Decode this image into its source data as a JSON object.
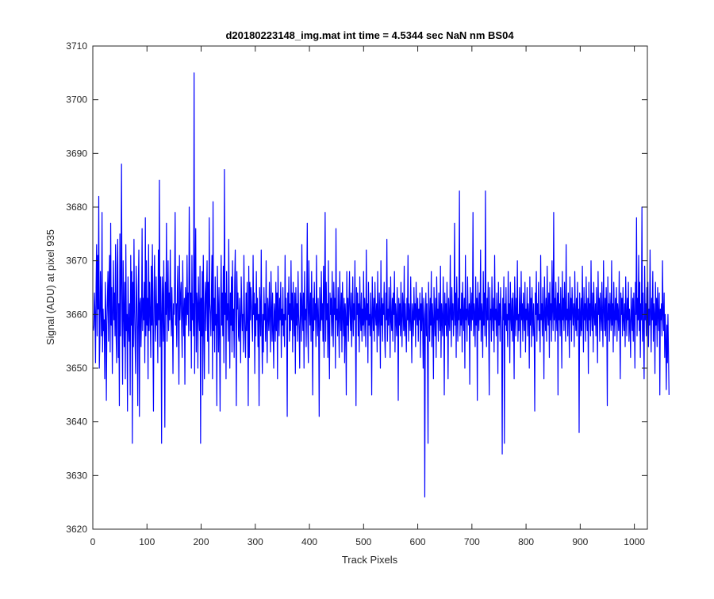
{
  "chart_data": {
    "type": "line",
    "title": "d20180223148_img.mat int time = 4.5344 sec  NaN nm BS04",
    "xlabel": "Track Pixels",
    "ylabel": "Signal (ADU) at pixel 935",
    "xlim": [
      0,
      1024
    ],
    "ylim": [
      3620,
      3710
    ],
    "xticks": [
      "0",
      "100",
      "200",
      "300",
      "400",
      "500",
      "600",
      "700",
      "800",
      "900",
      "1000"
    ],
    "yticks": [
      "3620",
      "3630",
      "3640",
      "3650",
      "3660",
      "3670",
      "3680",
      "3690",
      "3700",
      "3710"
    ],
    "grid": false,
    "series": [
      {
        "color": "#0000ff",
        "x_start": 1,
        "x_step": 1,
        "values": [
          3657,
          3658,
          3664,
          3660,
          3651,
          3665,
          3673,
          3656,
          3671,
          3661,
          3682,
          3650,
          3655,
          3668,
          3662,
          3656,
          3679,
          3653,
          3661,
          3657,
          3659,
          3648,
          3666,
          3661,
          3644,
          3658,
          3663,
          3668,
          3655,
          3666,
          3671,
          3653,
          3677,
          3658,
          3665,
          3649,
          3660,
          3670,
          3659,
          3664,
          3656,
          3673,
          3656,
          3651,
          3669,
          3674,
          3652,
          3662,
          3643,
          3675,
          3656,
          3666,
          3688,
          3659,
          3647,
          3670,
          3661,
          3654,
          3666,
          3648,
          3673,
          3657,
          3660,
          3642,
          3667,
          3658,
          3655,
          3662,
          3645,
          3671,
          3658,
          3668,
          3636,
          3666,
          3654,
          3674,
          3661,
          3655,
          3649,
          3669,
          3664,
          3657,
          3643,
          3665,
          3672,
          3641,
          3662,
          3663,
          3654,
          3660,
          3676,
          3657,
          3663,
          3659,
          3666,
          3651,
          3678,
          3656,
          3670,
          3658,
          3663,
          3648,
          3673,
          3657,
          3666,
          3660,
          3652,
          3669,
          3658,
          3673,
          3656,
          3642,
          3664,
          3671,
          3659,
          3655,
          3667,
          3658,
          3662,
          3651,
          3672,
          3659,
          3685,
          3654,
          3667,
          3660,
          3636,
          3667,
          3663,
          3655,
          3670,
          3657,
          3639,
          3666,
          3660,
          3677,
          3655,
          3662,
          3670,
          3657,
          3664,
          3659,
          3672,
          3661,
          3656,
          3665,
          3659,
          3649,
          3662,
          3660,
          3666,
          3679,
          3658,
          3662,
          3654,
          3664,
          3669,
          3657,
          3647,
          3671,
          3659,
          3663,
          3666,
          3658,
          3652,
          3670,
          3661,
          3656,
          3663,
          3647,
          3665,
          3662,
          3658,
          3671,
          3660,
          3664,
          3656,
          3680,
          3668,
          3657,
          3664,
          3650,
          3671,
          3659,
          3662,
          3656,
          3705,
          3649,
          3666,
          3676,
          3653,
          3664,
          3662,
          3650,
          3667,
          3660,
          3657,
          3669,
          3636,
          3663,
          3656,
          3668,
          3645,
          3671,
          3659,
          3648,
          3662,
          3666,
          3657,
          3664,
          3670,
          3655,
          3666,
          3649,
          3678,
          3662,
          3660,
          3656,
          3664,
          3671,
          3648,
          3681,
          3657,
          3663,
          3653,
          3667,
          3658,
          3660,
          3643,
          3669,
          3662,
          3653,
          3665,
          3657,
          3642,
          3662,
          3671,
          3658,
          3664,
          3656,
          3669,
          3651,
          3687,
          3660,
          3664,
          3648,
          3668,
          3659,
          3662,
          3655,
          3674,
          3660,
          3650,
          3664,
          3658,
          3667,
          3653,
          3670,
          3657,
          3661,
          3652,
          3666,
          3672,
          3659,
          3643,
          3668,
          3661,
          3664,
          3656,
          3655,
          3663,
          3659,
          3651,
          3667,
          3662,
          3657,
          3660,
          3653,
          3671,
          3661,
          3656,
          3652,
          3664,
          3657,
          3666,
          3658,
          3643,
          3669,
          3652,
          3666,
          3659,
          3665,
          3662,
          3658,
          3655,
          3671,
          3660,
          3664,
          3649,
          3662,
          3656,
          3668,
          3659,
          3663,
          3654,
          3660,
          3643,
          3665,
          3661,
          3656,
          3672,
          3658,
          3649,
          3660,
          3653,
          3665,
          3659,
          3662,
          3655,
          3670,
          3658,
          3651,
          3663,
          3660,
          3657,
          3666,
          3659,
          3653,
          3668,
          3661,
          3655,
          3664,
          3657,
          3650,
          3662,
          3660,
          3655,
          3666,
          3657,
          3664,
          3648,
          3669,
          3660,
          3656,
          3663,
          3659,
          3666,
          3652,
          3661,
          3658,
          3665,
          3656,
          3660,
          3654,
          3671,
          3659,
          3663,
          3657,
          3641,
          3664,
          3660,
          3667,
          3655,
          3662,
          3657,
          3670,
          3659,
          3664,
          3653,
          3666,
          3660,
          3656,
          3664,
          3649,
          3665,
          3658,
          3662,
          3655,
          3668,
          3660,
          3657,
          3650,
          3664,
          3662,
          3655,
          3673,
          3660,
          3657,
          3664,
          3650,
          3668,
          3659,
          3661,
          3654,
          3663,
          3677,
          3657,
          3651,
          3670,
          3661,
          3658,
          3664,
          3655,
          3668,
          3660,
          3645,
          3663,
          3657,
          3666,
          3659,
          3662,
          3654,
          3671,
          3660,
          3656,
          3663,
          3658,
          3641,
          3665,
          3661,
          3657,
          3668,
          3659,
          3662,
          3655,
          3669,
          3652,
          3664,
          3679,
          3655,
          3666,
          3659,
          3662,
          3652,
          3670,
          3657,
          3648,
          3664,
          3660,
          3663,
          3656,
          3668,
          3659,
          3654,
          3666,
          3660,
          3663,
          3650,
          3676,
          3659,
          3661,
          3656,
          3665,
          3659,
          3652,
          3668,
          3660,
          3657,
          3664,
          3653,
          3666,
          3660,
          3656,
          3663,
          3651,
          3662,
          3659,
          3645,
          3668,
          3658,
          3663,
          3655,
          3662,
          3668,
          3660,
          3657,
          3664,
          3654,
          3660,
          3667,
          3656,
          3662,
          3659,
          3670,
          3657,
          3643,
          3665,
          3660,
          3664,
          3656,
          3662,
          3653,
          3667,
          3660,
          3657,
          3664,
          3655,
          3661,
          3658,
          3668,
          3656,
          3663,
          3660,
          3654,
          3672,
          3659,
          3662,
          3651,
          3666,
          3658,
          3660,
          3656,
          3664,
          3659,
          3645,
          3667,
          3661,
          3657,
          3663,
          3655,
          3666,
          3660,
          3658,
          3662,
          3653,
          3668,
          3659,
          3656,
          3664,
          3660,
          3650,
          3670,
          3658,
          3663,
          3655,
          3662,
          3660,
          3666,
          3656,
          3652,
          3664,
          3659,
          3674,
          3655,
          3661,
          3658,
          3665,
          3660,
          3652,
          3667,
          3659,
          3657,
          3663,
          3655,
          3664,
          3660,
          3668,
          3653,
          3662,
          3659,
          3656,
          3665,
          3660,
          3644,
          3663,
          3658,
          3662,
          3656,
          3666,
          3659,
          3654,
          3664,
          3661,
          3657,
          3669,
          3656,
          3662,
          3658,
          3653,
          3663,
          3659,
          3671,
          3655,
          3662,
          3660,
          3657,
          3667,
          3658,
          3651,
          3662,
          3660,
          3656,
          3665,
          3659,
          3662,
          3654,
          3666,
          3660,
          3658,
          3663,
          3655,
          3661,
          3659,
          3664,
          3652,
          3662,
          3657,
          3665,
          3659,
          3650,
          3663,
          3660,
          3626,
          3659,
          3664,
          3656,
          3662,
          3653,
          3636,
          3666,
          3660,
          3655,
          3663,
          3658,
          3668,
          3654,
          3662,
          3659,
          3648,
          3665,
          3660,
          3656,
          3663,
          3652,
          3667,
          3659,
          3661,
          3655,
          3664,
          3660,
          3657,
          3669,
          3652,
          3662,
          3659,
          3656,
          3667,
          3660,
          3645,
          3664,
          3658,
          3662,
          3656,
          3666,
          3660,
          3648,
          3663,
          3659,
          3657,
          3671,
          3660,
          3654,
          3665,
          3659,
          3662,
          3656,
          3660,
          3677,
          3658,
          3664,
          3652,
          3667,
          3660,
          3655,
          3663,
          3659,
          3683,
          3656,
          3661,
          3658,
          3664,
          3653,
          3666,
          3660,
          3657,
          3663,
          3650,
          3671,
          3659,
          3661,
          3655,
          3667,
          3660,
          3658,
          3662,
          3647,
          3665,
          3661,
          3657,
          3664,
          3659,
          3679,
          3656,
          3662,
          3660,
          3654,
          3667,
          3658,
          3663,
          3644,
          3666,
          3660,
          3657,
          3664,
          3659,
          3672,
          3655,
          3662,
          3660,
          3652,
          3668,
          3658,
          3664,
          3656,
          3683,
          3660,
          3654,
          3663,
          3659,
          3666,
          3657,
          3645,
          3665,
          3659,
          3661,
          3655,
          3667,
          3660,
          3657,
          3663,
          3653,
          3671,
          3659,
          3661,
          3656,
          3664,
          3660,
          3649,
          3666,
          3658,
          3662,
          3655,
          3665,
          3660,
          3657,
          3634,
          3663,
          3659,
          3667,
          3636,
          3662,
          3658,
          3665,
          3657,
          3660,
          3654,
          3668,
          3659,
          3662,
          3651,
          3666,
          3660,
          3657,
          3663,
          3655,
          3664,
          3659,
          3648,
          3667,
          3661,
          3656,
          3663,
          3659,
          3670,
          3655,
          3660,
          3657,
          3665,
          3661,
          3652,
          3668,
          3659,
          3662,
          3655,
          3664,
          3660,
          3657,
          3666,
          3653,
          3661,
          3659,
          3665,
          3656,
          3662,
          3660,
          3650,
          3667,
          3658,
          3663,
          3654,
          3665,
          3660,
          3656,
          3662,
          3657,
          3642,
          3664,
          3660,
          3668,
          3655,
          3662,
          3659,
          3666,
          3657,
          3660,
          3653,
          3671,
          3659,
          3662,
          3656,
          3665,
          3660,
          3648,
          3667,
          3661,
          3657,
          3663,
          3655,
          3669,
          3660,
          3658,
          3664,
          3652,
          3666,
          3659,
          3662,
          3655,
          3670,
          3661,
          3657,
          3679,
          3659,
          3663,
          3655,
          3666,
          3660,
          3657,
          3664,
          3645,
          3667,
          3659,
          3662,
          3656,
          3665,
          3660,
          3650,
          3668,
          3659,
          3663,
          3657,
          3666,
          3660,
          3655,
          3673,
          3659,
          3661,
          3656,
          3664,
          3660,
          3652,
          3667,
          3659,
          3663,
          3655,
          3665,
          3661,
          3658,
          3662,
          3654,
          3668,
          3660,
          3657,
          3663,
          3656,
          3666,
          3659,
          3661,
          3638,
          3664,
          3660,
          3656,
          3663,
          3657,
          3669,
          3660,
          3653,
          3665,
          3659,
          3662,
          3655,
          3667,
          3660,
          3657,
          3663,
          3649,
          3666,
          3659,
          3662,
          3656,
          3670,
          3660,
          3657,
          3664,
          3653,
          3666,
          3660,
          3658,
          3662,
          3656,
          3665,
          3659,
          3651,
          3668,
          3660,
          3663,
          3655,
          3664,
          3660,
          3657,
          3666,
          3659,
          3654,
          3670,
          3661,
          3657,
          3663,
          3656,
          3665,
          3660,
          3643,
          3667,
          3659,
          3662,
          3655,
          3664,
          3660,
          3657,
          3670,
          3658,
          3662,
          3653,
          3666,
          3660,
          3656,
          3663,
          3659,
          3665,
          3655,
          3662,
          3660,
          3657,
          3668,
          3658,
          3648,
          3664,
          3660,
          3663,
          3656,
          3665,
          3659,
          3657,
          3662,
          3654,
          3667,
          3660,
          3656,
          3663,
          3659,
          3666,
          3655,
          3661,
          3658,
          3652,
          3665,
          3660,
          3657,
          3663,
          3655,
          3664,
          3659,
          3650,
          3666,
          3660,
          3678,
          3656,
          3663,
          3659,
          3671,
          3657,
          3666,
          3652,
          3662,
          3659,
          3680,
          3655,
          3664,
          3657,
          3648,
          3669,
          3659,
          3662,
          3656,
          3665,
          3660,
          3666,
          3654,
          3661,
          3658,
          3672,
          3660,
          3653,
          3663,
          3659,
          3668,
          3655,
          3662,
          3660,
          3649,
          3666,
          3658,
          3663,
          3654,
          3665,
          3660,
          3657,
          3664,
          3645,
          3661,
          3659,
          3662,
          3656,
          3670,
          3660,
          3657,
          3664,
          3652,
          3660,
          3655,
          3646,
          3658,
          3651,
          3660,
          3653,
          3645
        ]
      }
    ]
  }
}
